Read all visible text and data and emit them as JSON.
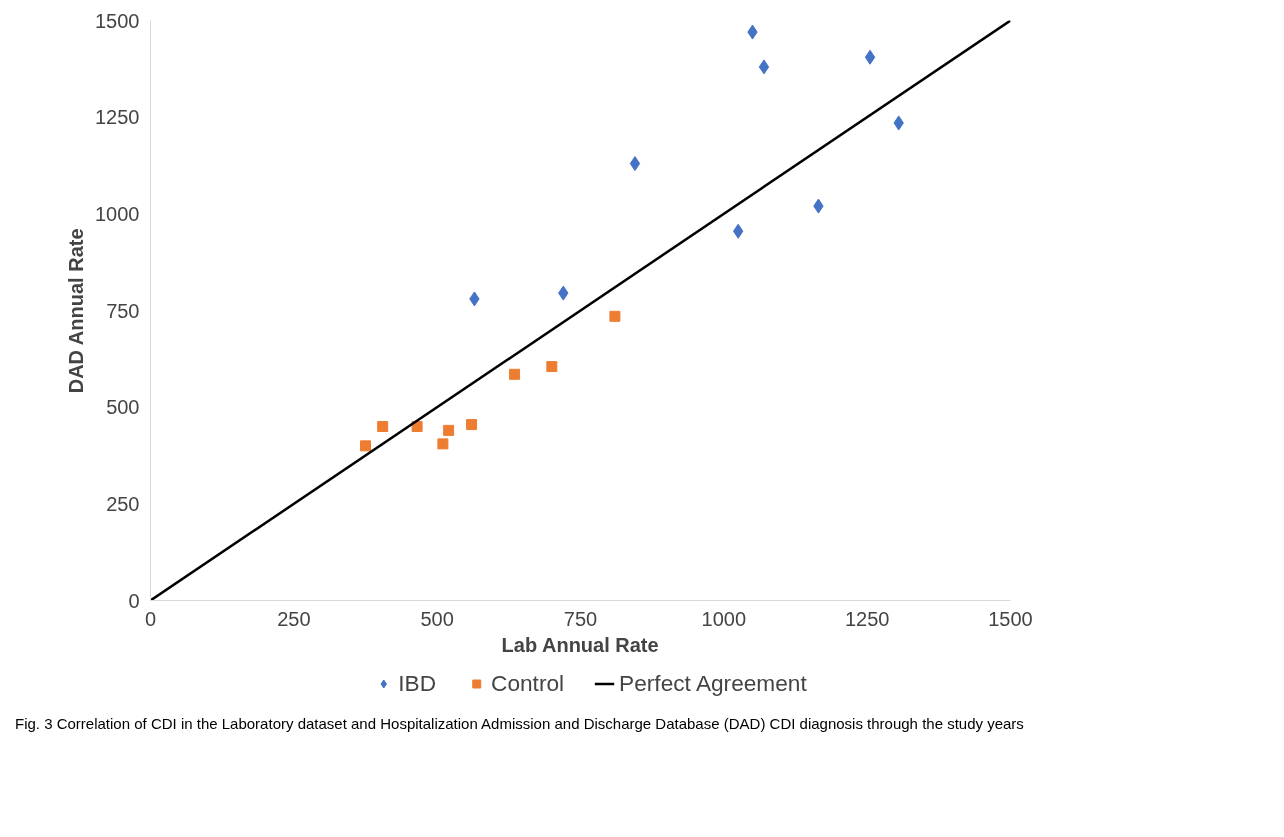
{
  "chart_data": {
    "type": "scatter",
    "xlabel": "Lab Annual Rate",
    "ylabel": "DAD Annual Rate",
    "xlim": [
      0,
      1500
    ],
    "ylim": [
      0,
      1500
    ],
    "xticks": [
      0,
      250,
      500,
      750,
      1000,
      1250,
      1500
    ],
    "yticks": [
      0,
      250,
      500,
      750,
      1000,
      1250,
      1500
    ],
    "grid": false,
    "legend": "bottom",
    "series": [
      {
        "name": "IBD",
        "color": "#4472c4",
        "marker": "diamond",
        "x": [
          565,
          720,
          845,
          1025,
          1050,
          1070,
          1165,
          1255,
          1305
        ],
        "values": [
          780,
          795,
          1130,
          955,
          1470,
          1380,
          1020,
          1405,
          1235
        ]
      },
      {
        "name": "Control",
        "color": "#ed7d31",
        "marker": "square",
        "x": [
          375,
          405,
          465,
          510,
          520,
          560,
          635,
          700,
          810
        ],
        "values": [
          400,
          450,
          450,
          405,
          440,
          455,
          585,
          605,
          735
        ]
      },
      {
        "name": "Perfect Agreement",
        "type": "line",
        "color": "#000000",
        "marker": "none",
        "line_style": "solid",
        "x": [
          0,
          1500
        ],
        "values": [
          0,
          1500
        ]
      }
    ],
    "annotations": [
      "Fig. 3 Correlation of CDI in the Laboratory dataset and Hospitalization Admission and Discharge Database (DAD) CDI diagnosis through the study years"
    ]
  }
}
